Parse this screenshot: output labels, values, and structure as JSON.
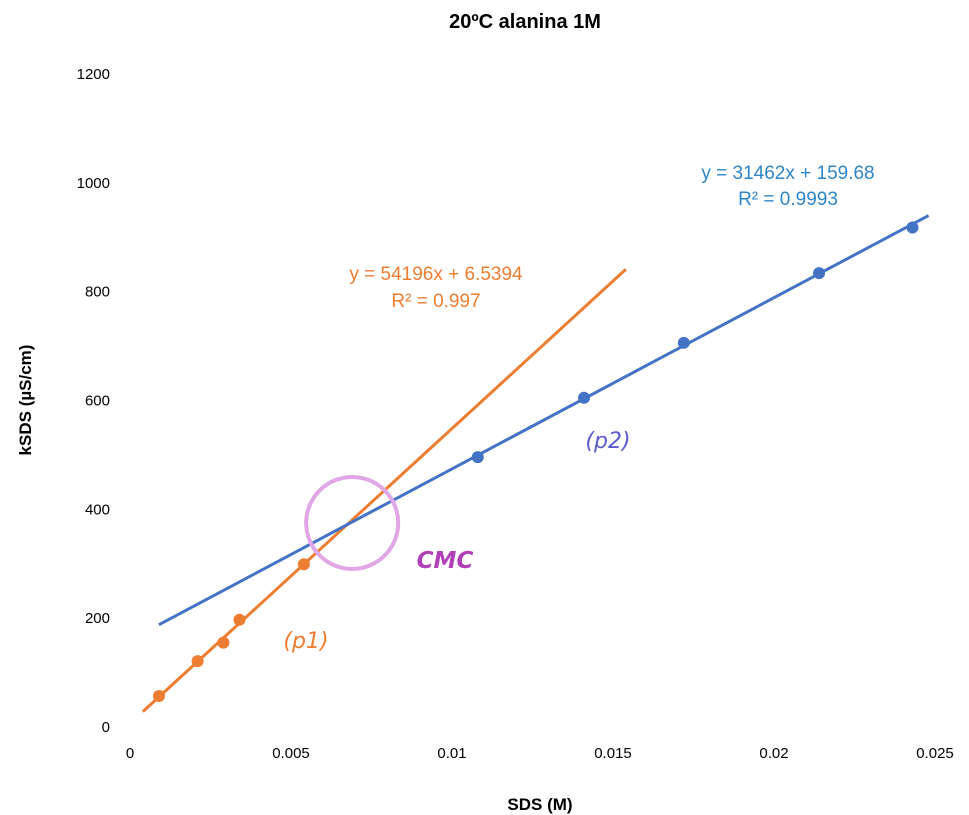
{
  "chart_data": {
    "type": "scatter",
    "title": "20ºC alanina 1M",
    "xlabel": "SDS (M)",
    "ylabel": "kSDS (µS/cm)",
    "xlim": [
      0,
      0.025
    ],
    "ylim": [
      0,
      1200
    ],
    "x_ticks": [
      "0",
      "0.005",
      "0.01",
      "0.015",
      "0.02",
      "0.025"
    ],
    "y_ticks": [
      "0",
      "200",
      "400",
      "600",
      "800",
      "1000",
      "1200"
    ],
    "grid": false,
    "series": [
      {
        "color": "#ED7D31",
        "x": [
          0.0009,
          0.0021,
          0.0029,
          0.0034,
          0.0054
        ],
        "y": [
          57,
          121,
          155,
          197,
          299
        ],
        "trendline": {
          "slope": 54196,
          "intercept": 6.5394,
          "x_range": [
            0.0004,
            0.0154
          ],
          "equation": "y = 54196x + 6.5394",
          "r2": "R² = 0.997"
        }
      },
      {
        "color": "#4472C4",
        "x": [
          0.0108,
          0.0141,
          0.0172,
          0.0214,
          0.0243
        ],
        "y": [
          496,
          605,
          706,
          834,
          918
        ],
        "trendline": {
          "slope": 31462,
          "intercept": 159.68,
          "x_range": [
            0.0009,
            0.0248
          ],
          "equation": "y = 31462x + 159.68",
          "r2": "R² = 0.9993"
        }
      }
    ],
    "annotations": {
      "p1": "(p1)",
      "p2": "(p2)",
      "cmc": "CMC",
      "cmc_point": {
        "x": 0.0069,
        "y": 375
      },
      "circle_color": "#E0A6E6",
      "cmc_color": "#B03FB8",
      "p1_color": "#ED7D31",
      "p2_color": "#5B5BD0",
      "eq2_color": "#2E86C8"
    }
  }
}
